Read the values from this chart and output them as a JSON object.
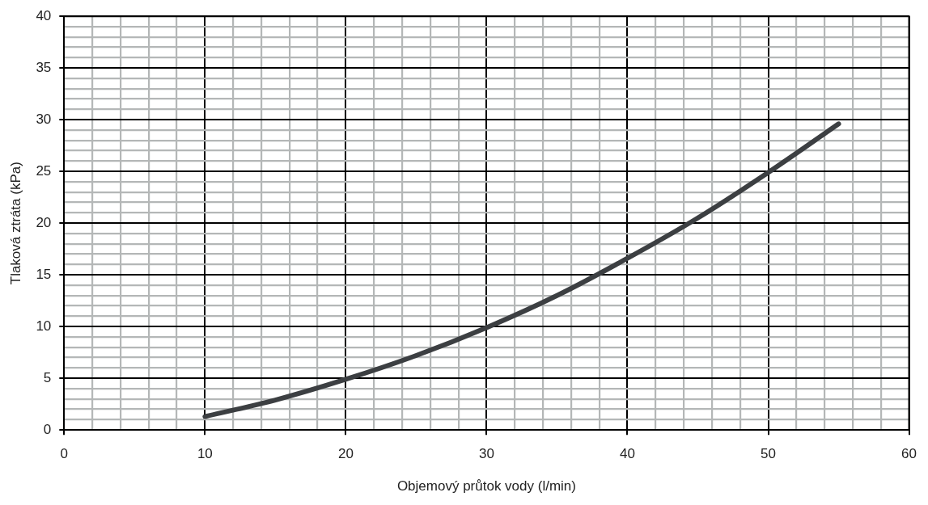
{
  "chart_data": {
    "type": "line",
    "xlabel": "Objemový průtok vody (l/min)",
    "ylabel": "Tlaková ztráta (kPa)",
    "xlim": [
      0,
      60
    ],
    "ylim": [
      0,
      40
    ],
    "xticks": [
      0,
      {
        "value": 2,
        "label": null
      },
      {
        "value": 4,
        "label": null
      },
      {
        "value": 6,
        "label": null
      },
      {
        "value": 8,
        "label": null
      },
      10,
      {
        "value": 12,
        "label": null
      },
      {
        "value": 14,
        "label": null
      },
      {
        "value": 16,
        "label": null
      },
      {
        "value": 18,
        "label": null
      },
      20,
      {
        "value": 22,
        "label": null
      },
      {
        "value": 24,
        "label": null
      },
      {
        "value": 26,
        "label": null
      },
      {
        "value": 28,
        "label": null
      },
      30,
      {
        "value": 32,
        "label": null
      },
      {
        "value": 34,
        "label": null
      },
      {
        "value": 36,
        "label": null
      },
      {
        "value": 38,
        "label": null
      },
      40,
      {
        "value": 42,
        "label": null
      },
      {
        "value": 44,
        "label": null
      },
      {
        "value": 46,
        "label": null
      },
      {
        "value": 48,
        "label": null
      },
      50,
      {
        "value": 52,
        "label": null
      },
      {
        "value": 54,
        "label": null
      },
      {
        "value": 56,
        "label": null
      },
      {
        "value": 58,
        "label": null
      },
      60
    ],
    "yticks": [
      0,
      {
        "value": 1,
        "label": null
      },
      {
        "value": 2,
        "label": null
      },
      {
        "value": 3,
        "label": null
      },
      {
        "value": 4,
        "label": null
      },
      5,
      {
        "value": 6,
        "label": null
      },
      {
        "value": 7,
        "label": null
      },
      {
        "value": 8,
        "label": null
      },
      {
        "value": 9,
        "label": null
      },
      10,
      {
        "value": 11,
        "label": null
      },
      {
        "value": 12,
        "label": null
      },
      {
        "value": 13,
        "label": null
      },
      {
        "value": 14,
        "label": null
      },
      15,
      {
        "value": 16,
        "label": null
      },
      {
        "value": 17,
        "label": null
      },
      {
        "value": 18,
        "label": null
      },
      {
        "value": 19,
        "label": null
      },
      20,
      {
        "value": 21,
        "label": null
      },
      {
        "value": 22,
        "label": null
      },
      {
        "value": 23,
        "label": null
      },
      {
        "value": 24,
        "label": null
      },
      25,
      {
        "value": 26,
        "label": null
      },
      {
        "value": 27,
        "label": null
      },
      {
        "value": 28,
        "label": null
      },
      {
        "value": 29,
        "label": null
      },
      30,
      {
        "value": 31,
        "label": null
      },
      {
        "value": 32,
        "label": null
      },
      {
        "value": 33,
        "label": null
      },
      {
        "value": 34,
        "label": null
      },
      35,
      {
        "value": 36,
        "label": null
      },
      {
        "value": 37,
        "label": null
      },
      {
        "value": 38,
        "label": null
      },
      {
        "value": 39,
        "label": null
      },
      40
    ],
    "grid": true,
    "legend": false,
    "marker": "none",
    "line_style": "solid",
    "series": [
      {
        "color": "#3c3f42",
        "x": [
          10,
          15,
          20,
          25,
          30,
          35,
          40,
          45,
          50,
          55
        ],
        "values": [
          1.3,
          2.9,
          4.9,
          7.2,
          9.9,
          13.0,
          16.6,
          20.5,
          24.9,
          29.6
        ]
      }
    ]
  }
}
